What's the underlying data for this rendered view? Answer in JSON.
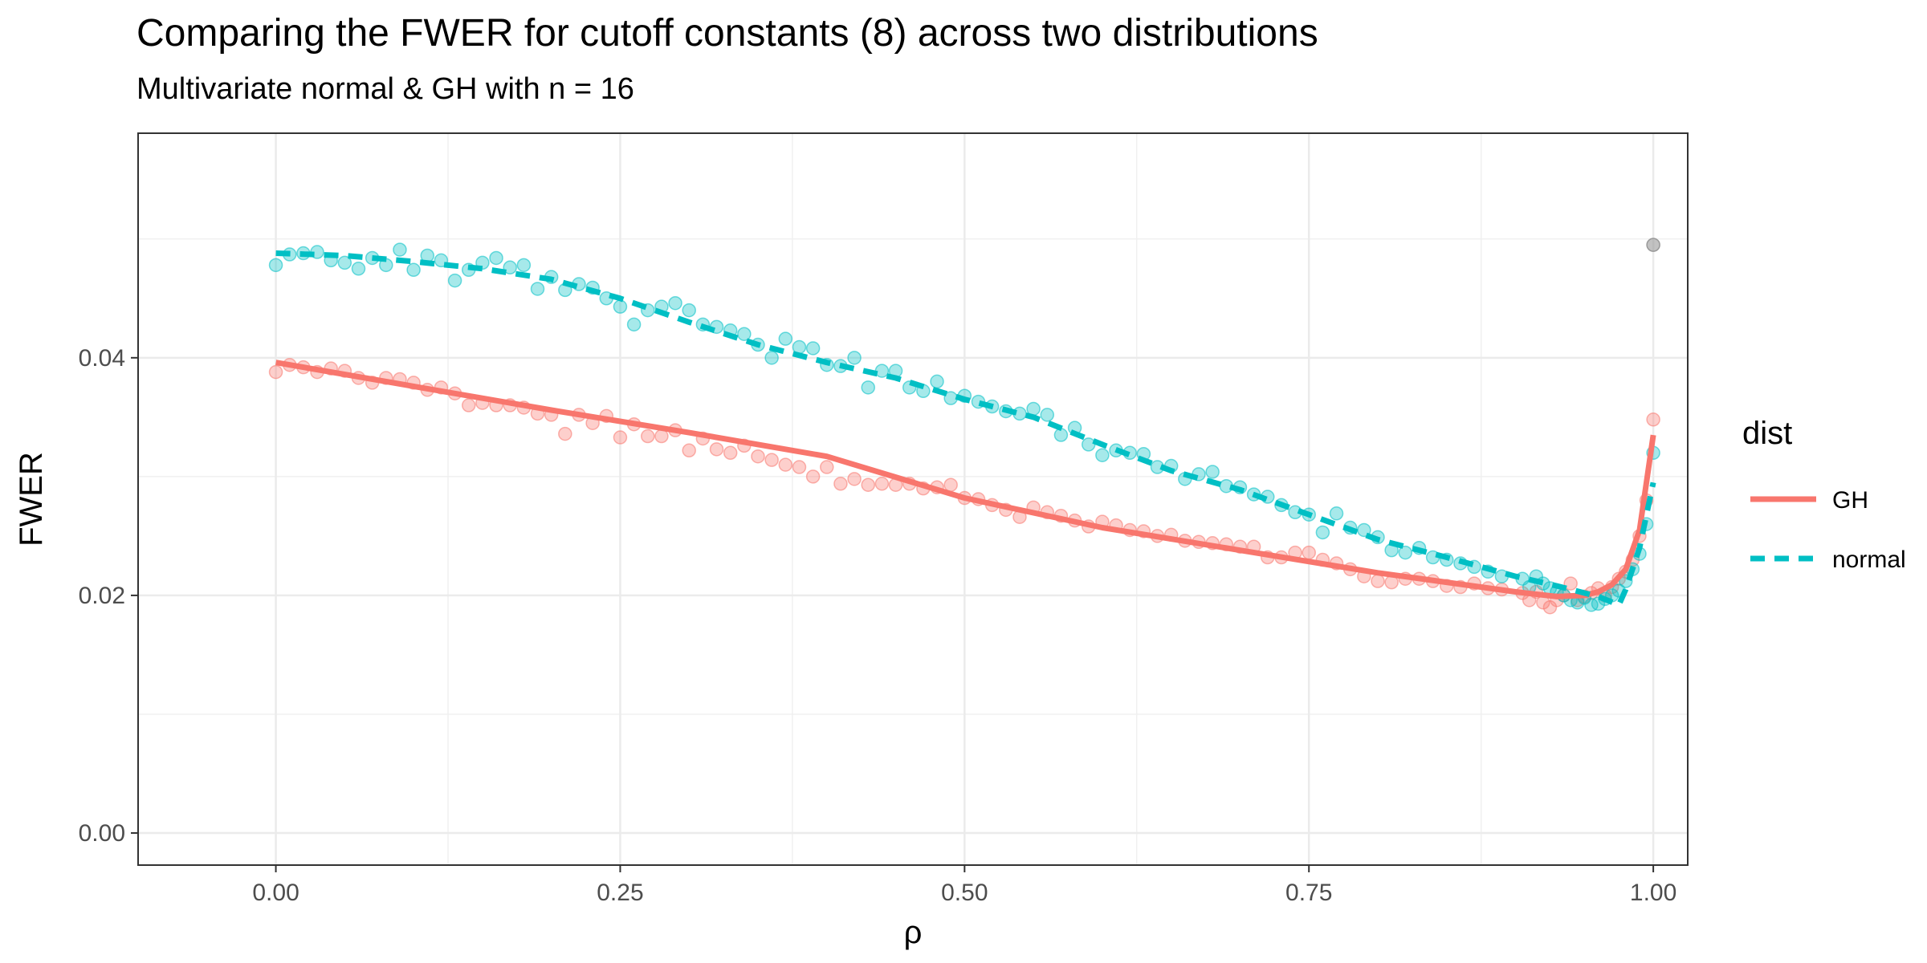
{
  "chart_data": {
    "type": "scatter",
    "title": "Comparing the FWER for cutoff constants (8) across two distributions",
    "subtitle": "Multivariate normal & GH with n = 16",
    "xlabel": "ρ",
    "ylabel": "FWER",
    "xlim": [
      -0.1,
      1.025
    ],
    "ylim": [
      -0.0027,
      0.0589
    ],
    "x_ticks": [
      0.0,
      0.25,
      0.5,
      0.75,
      1.0
    ],
    "x_tick_labels": [
      "0.00",
      "0.25",
      "0.50",
      "0.75",
      "1.00"
    ],
    "y_ticks": [
      0.0,
      0.02,
      0.04
    ],
    "y_tick_labels": [
      "0.00",
      "0.02",
      "0.04"
    ],
    "grid": true,
    "legend": {
      "title": "dist",
      "position": "right"
    },
    "series": [
      {
        "name": "GH",
        "color": "#F8766D",
        "line_style": "solid",
        "points": [
          [
            0.0,
            0.0388
          ],
          [
            0.01,
            0.0394
          ],
          [
            0.02,
            0.0392
          ],
          [
            0.03,
            0.0388
          ],
          [
            0.04,
            0.0391
          ],
          [
            0.05,
            0.0389
          ],
          [
            0.06,
            0.0383
          ],
          [
            0.07,
            0.0379
          ],
          [
            0.08,
            0.0383
          ],
          [
            0.09,
            0.0382
          ],
          [
            0.1,
            0.0379
          ],
          [
            0.11,
            0.0373
          ],
          [
            0.12,
            0.0375
          ],
          [
            0.13,
            0.037
          ],
          [
            0.14,
            0.036
          ],
          [
            0.15,
            0.0362
          ],
          [
            0.16,
            0.036
          ],
          [
            0.17,
            0.036
          ],
          [
            0.18,
            0.0358
          ],
          [
            0.19,
            0.0353
          ],
          [
            0.2,
            0.0352
          ],
          [
            0.21,
            0.0336
          ],
          [
            0.22,
            0.0352
          ],
          [
            0.23,
            0.0345
          ],
          [
            0.24,
            0.0351
          ],
          [
            0.25,
            0.0333
          ],
          [
            0.26,
            0.0344
          ],
          [
            0.27,
            0.0334
          ],
          [
            0.28,
            0.0334
          ],
          [
            0.29,
            0.0339
          ],
          [
            0.3,
            0.0322
          ],
          [
            0.31,
            0.0332
          ],
          [
            0.32,
            0.0323
          ],
          [
            0.33,
            0.032
          ],
          [
            0.34,
            0.0326
          ],
          [
            0.35,
            0.0317
          ],
          [
            0.36,
            0.0314
          ],
          [
            0.37,
            0.031
          ],
          [
            0.38,
            0.0308
          ],
          [
            0.39,
            0.03
          ],
          [
            0.4,
            0.0308
          ],
          [
            0.41,
            0.0294
          ],
          [
            0.42,
            0.0298
          ],
          [
            0.43,
            0.0293
          ],
          [
            0.44,
            0.0294
          ],
          [
            0.45,
            0.0293
          ],
          [
            0.46,
            0.0294
          ],
          [
            0.47,
            0.029
          ],
          [
            0.48,
            0.0291
          ],
          [
            0.49,
            0.0293
          ],
          [
            0.5,
            0.0282
          ],
          [
            0.51,
            0.0281
          ],
          [
            0.52,
            0.0276
          ],
          [
            0.53,
            0.0272
          ],
          [
            0.54,
            0.0266
          ],
          [
            0.55,
            0.0274
          ],
          [
            0.56,
            0.027
          ],
          [
            0.57,
            0.0267
          ],
          [
            0.58,
            0.0263
          ],
          [
            0.59,
            0.0258
          ],
          [
            0.6,
            0.0262
          ],
          [
            0.61,
            0.0259
          ],
          [
            0.62,
            0.0255
          ],
          [
            0.63,
            0.0254
          ],
          [
            0.64,
            0.025
          ],
          [
            0.65,
            0.0251
          ],
          [
            0.66,
            0.0246
          ],
          [
            0.67,
            0.0245
          ],
          [
            0.68,
            0.0244
          ],
          [
            0.69,
            0.0243
          ],
          [
            0.7,
            0.0241
          ],
          [
            0.71,
            0.0241
          ],
          [
            0.72,
            0.0232
          ],
          [
            0.73,
            0.0232
          ],
          [
            0.74,
            0.0236
          ],
          [
            0.75,
            0.0236
          ],
          [
            0.76,
            0.023
          ],
          [
            0.77,
            0.0227
          ],
          [
            0.78,
            0.0222
          ],
          [
            0.79,
            0.0216
          ],
          [
            0.8,
            0.0212
          ],
          [
            0.81,
            0.0211
          ],
          [
            0.82,
            0.0214
          ],
          [
            0.83,
            0.0214
          ],
          [
            0.84,
            0.0212
          ],
          [
            0.85,
            0.0208
          ],
          [
            0.86,
            0.0207
          ],
          [
            0.87,
            0.021
          ],
          [
            0.88,
            0.0206
          ],
          [
            0.89,
            0.0205
          ],
          [
            0.905,
            0.0202
          ],
          [
            0.91,
            0.0196
          ],
          [
            0.915,
            0.0203
          ],
          [
            0.92,
            0.0194
          ],
          [
            0.925,
            0.019
          ],
          [
            0.93,
            0.0196
          ],
          [
            0.935,
            0.02
          ],
          [
            0.94,
            0.021
          ],
          [
            0.945,
            0.0196
          ],
          [
            0.95,
            0.0199
          ],
          [
            0.955,
            0.0202
          ],
          [
            0.96,
            0.0206
          ],
          [
            0.965,
            0.02
          ],
          [
            0.97,
            0.0207
          ],
          [
            0.975,
            0.0214
          ],
          [
            0.98,
            0.022
          ],
          [
            0.985,
            0.023
          ],
          [
            0.99,
            0.025
          ],
          [
            0.995,
            0.028
          ],
          [
            1.0,
            0.0348
          ]
        ],
        "fit": [
          [
            0.0,
            0.0396
          ],
          [
            0.1,
            0.0376
          ],
          [
            0.2,
            0.0356
          ],
          [
            0.3,
            0.0337
          ],
          [
            0.4,
            0.0317
          ],
          [
            0.5,
            0.0282
          ],
          [
            0.6,
            0.0257
          ],
          [
            0.7,
            0.0238
          ],
          [
            0.8,
            0.0219
          ],
          [
            0.85,
            0.0211
          ],
          [
            0.9,
            0.0203
          ],
          [
            0.93,
            0.0199
          ],
          [
            0.95,
            0.02
          ],
          [
            0.96,
            0.0203
          ],
          [
            0.97,
            0.0209
          ],
          [
            0.98,
            0.0222
          ],
          [
            0.99,
            0.0255
          ],
          [
            1.0,
            0.0335
          ]
        ]
      },
      {
        "name": "normal",
        "color": "#00BFC4",
        "line_style": "dashed",
        "points": [
          [
            0.0,
            0.0478
          ],
          [
            0.01,
            0.0487
          ],
          [
            0.02,
            0.0488
          ],
          [
            0.03,
            0.0489
          ],
          [
            0.04,
            0.0482
          ],
          [
            0.05,
            0.048
          ],
          [
            0.06,
            0.0475
          ],
          [
            0.07,
            0.0484
          ],
          [
            0.08,
            0.0478
          ],
          [
            0.09,
            0.0491
          ],
          [
            0.1,
            0.0474
          ],
          [
            0.11,
            0.0486
          ],
          [
            0.12,
            0.0482
          ],
          [
            0.13,
            0.0465
          ],
          [
            0.14,
            0.0474
          ],
          [
            0.15,
            0.048
          ],
          [
            0.16,
            0.0484
          ],
          [
            0.17,
            0.0476
          ],
          [
            0.18,
            0.0478
          ],
          [
            0.19,
            0.0458
          ],
          [
            0.2,
            0.0468
          ],
          [
            0.21,
            0.0457
          ],
          [
            0.22,
            0.0462
          ],
          [
            0.23,
            0.0459
          ],
          [
            0.24,
            0.045
          ],
          [
            0.25,
            0.0443
          ],
          [
            0.26,
            0.0428
          ],
          [
            0.27,
            0.044
          ],
          [
            0.28,
            0.0443
          ],
          [
            0.29,
            0.0446
          ],
          [
            0.3,
            0.044
          ],
          [
            0.31,
            0.0428
          ],
          [
            0.32,
            0.0426
          ],
          [
            0.33,
            0.0423
          ],
          [
            0.34,
            0.042
          ],
          [
            0.35,
            0.0411
          ],
          [
            0.36,
            0.04
          ],
          [
            0.37,
            0.0416
          ],
          [
            0.38,
            0.0409
          ],
          [
            0.39,
            0.0408
          ],
          [
            0.4,
            0.0394
          ],
          [
            0.41,
            0.0393
          ],
          [
            0.42,
            0.04
          ],
          [
            0.43,
            0.0375
          ],
          [
            0.44,
            0.0389
          ],
          [
            0.45,
            0.0389
          ],
          [
            0.46,
            0.0375
          ],
          [
            0.47,
            0.0372
          ],
          [
            0.48,
            0.038
          ],
          [
            0.49,
            0.0366
          ],
          [
            0.5,
            0.0368
          ],
          [
            0.51,
            0.0363
          ],
          [
            0.52,
            0.0359
          ],
          [
            0.53,
            0.0355
          ],
          [
            0.54,
            0.0353
          ],
          [
            0.55,
            0.0357
          ],
          [
            0.56,
            0.0352
          ],
          [
            0.57,
            0.0335
          ],
          [
            0.58,
            0.0341
          ],
          [
            0.59,
            0.0327
          ],
          [
            0.6,
            0.0318
          ],
          [
            0.61,
            0.0322
          ],
          [
            0.62,
            0.032
          ],
          [
            0.63,
            0.0319
          ],
          [
            0.64,
            0.0308
          ],
          [
            0.65,
            0.0309
          ],
          [
            0.66,
            0.0298
          ],
          [
            0.67,
            0.0302
          ],
          [
            0.68,
            0.0304
          ],
          [
            0.69,
            0.0292
          ],
          [
            0.7,
            0.0291
          ],
          [
            0.71,
            0.0285
          ],
          [
            0.72,
            0.0283
          ],
          [
            0.73,
            0.0276
          ],
          [
            0.74,
            0.027
          ],
          [
            0.75,
            0.0268
          ],
          [
            0.76,
            0.0253
          ],
          [
            0.77,
            0.0269
          ],
          [
            0.78,
            0.0257
          ],
          [
            0.79,
            0.0255
          ],
          [
            0.8,
            0.0249
          ],
          [
            0.81,
            0.0238
          ],
          [
            0.82,
            0.0236
          ],
          [
            0.83,
            0.024
          ],
          [
            0.84,
            0.0232
          ],
          [
            0.85,
            0.023
          ],
          [
            0.86,
            0.0227
          ],
          [
            0.87,
            0.0224
          ],
          [
            0.88,
            0.022
          ],
          [
            0.89,
            0.0216
          ],
          [
            0.905,
            0.0214
          ],
          [
            0.91,
            0.0207
          ],
          [
            0.915,
            0.0216
          ],
          [
            0.92,
            0.021
          ],
          [
            0.925,
            0.0206
          ],
          [
            0.93,
            0.0203
          ],
          [
            0.935,
            0.02
          ],
          [
            0.94,
            0.0196
          ],
          [
            0.945,
            0.0194
          ],
          [
            0.95,
            0.0198
          ],
          [
            0.955,
            0.0192
          ],
          [
            0.96,
            0.0193
          ],
          [
            0.965,
            0.0197
          ],
          [
            0.97,
            0.02
          ],
          [
            0.975,
            0.0204
          ],
          [
            0.98,
            0.0212
          ],
          [
            0.985,
            0.0222
          ],
          [
            0.99,
            0.0235
          ],
          [
            0.995,
            0.026
          ],
          [
            1.0,
            0.032
          ]
        ],
        "fit": [
          [
            0.0,
            0.0488
          ],
          [
            0.05,
            0.0486
          ],
          [
            0.1,
            0.0481
          ],
          [
            0.15,
            0.0475
          ],
          [
            0.2,
            0.0466
          ],
          [
            0.25,
            0.045
          ],
          [
            0.3,
            0.043
          ],
          [
            0.35,
            0.0411
          ],
          [
            0.4,
            0.0396
          ],
          [
            0.45,
            0.0383
          ],
          [
            0.5,
            0.0365
          ],
          [
            0.55,
            0.035
          ],
          [
            0.6,
            0.0327
          ],
          [
            0.65,
            0.0305
          ],
          [
            0.7,
            0.0289
          ],
          [
            0.75,
            0.0268
          ],
          [
            0.8,
            0.0247
          ],
          [
            0.85,
            0.0232
          ],
          [
            0.9,
            0.0216
          ],
          [
            0.93,
            0.0208
          ],
          [
            0.96,
            0.0199
          ],
          [
            0.975,
            0.0192
          ],
          [
            0.98,
            0.0205
          ],
          [
            0.99,
            0.024
          ],
          [
            1.0,
            0.0295
          ]
        ]
      }
    ],
    "extra_points": [
      {
        "x": 1.0,
        "y": 0.0495,
        "color": "#999999"
      }
    ]
  }
}
